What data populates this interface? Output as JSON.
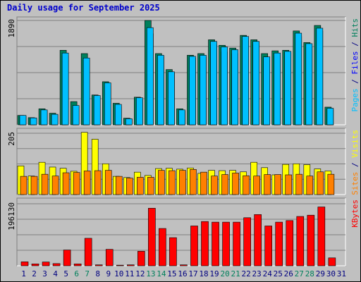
{
  "chart_data": {
    "type": "bar",
    "title": "Daily usage for September 2025",
    "days": [
      "1",
      "2",
      "3",
      "4",
      "5",
      "6",
      "7",
      "8",
      "9",
      "10",
      "11",
      "12",
      "13",
      "14",
      "15",
      "16",
      "17",
      "18",
      "19",
      "20",
      "21",
      "22",
      "23",
      "24",
      "25",
      "26",
      "27",
      "28",
      "29",
      "30",
      "31"
    ],
    "weekend_days": [
      "6",
      "7",
      "13",
      "14",
      "20",
      "21",
      "27",
      "28"
    ],
    "weekend_color": "#00805c",
    "weekday_color": "#000080",
    "panels": [
      {
        "name": "requests",
        "ymax": 1890,
        "ymax_label": "1890",
        "legend": [
          {
            "text": "Pages",
            "color": "#00c0ff"
          },
          {
            "text": " / ",
            "color": "#000080"
          },
          {
            "text": "Files",
            "color": "#0000ff"
          },
          {
            "text": " / ",
            "color": "#000080"
          },
          {
            "text": "Hits",
            "color": "#00805c"
          }
        ],
        "series": [
          {
            "key": "Hits",
            "color": "#00805c",
            "values": [
              170,
              130,
              290,
              210,
              1350,
              420,
              1290,
              540,
              780,
              390,
              120,
              500,
              1890,
              1290,
              1000,
              290,
              1260,
              1290,
              1540,
              1440,
              1390,
              1620,
              1540,
              1290,
              1340,
              1350,
              1700,
              1490,
              1800,
              320,
              0
            ]
          },
          {
            "key": "Files",
            "color": "#0000ff",
            "values": [
              150,
              110,
              260,
              180,
              1250,
              330,
              1190,
              470,
              700,
              330,
              100,
              460,
              1650,
              1240,
              940,
              250,
              1210,
              1230,
              1450,
              1320,
              1290,
              1530,
              1450,
              1200,
              1250,
              1300,
              1600,
              1410,
              1700,
              280,
              0
            ]
          },
          {
            "key": "Pages",
            "color": "#00c0ff",
            "values": [
              170,
              125,
              270,
              190,
              1300,
              350,
              1210,
              530,
              760,
              370,
              110,
              490,
              1760,
              1260,
              960,
              270,
              1240,
              1260,
              1510,
              1410,
              1360,
              1600,
              1510,
              1230,
              1300,
              1330,
              1660,
              1470,
              1750,
              300,
              0
            ]
          }
        ]
      },
      {
        "name": "visits",
        "ymax": 205,
        "ymax_label": "205",
        "legend": [
          {
            "text": "Sites",
            "color": "#ff8000"
          },
          {
            "text": " / ",
            "color": "#000080"
          },
          {
            "text": "Visits",
            "color": "#ffff00"
          }
        ],
        "series": [
          {
            "key": "Visits",
            "color": "#ffff00",
            "values": [
              96,
              62,
              108,
              92,
              88,
              78,
              208,
              185,
              103,
              61,
              57,
              75,
              64,
              87,
              88,
              85,
              89,
              71,
              81,
              80,
              81,
              76,
              108,
              90,
              66,
              101,
              103,
              100,
              86,
              79,
              0
            ]
          },
          {
            "key": "Sites",
            "color": "#ff8000",
            "values": [
              61,
              61,
              68,
              62,
              73,
              74,
              79,
              80,
              81,
              61,
              55,
              58,
              58,
              81,
              80,
              81,
              84,
              75,
              62,
              67,
              72,
              63,
              62,
              67,
              67,
              66,
              68,
              62,
              76,
              68,
              0
            ]
          }
        ]
      },
      {
        "name": "kbytes",
        "ymax": 196130,
        "ymax_label": "196130",
        "legend": [
          {
            "text": "KBytes",
            "color": "#ff0000"
          }
        ],
        "series": [
          {
            "key": "KBytes",
            "color": "#ff0000",
            "values": [
              12500,
              6000,
              12000,
              7000,
              50000,
              6000,
              87000,
              3000,
              52000,
              2000,
              3000,
              46000,
              182000,
              118000,
              89000,
              3000,
              126000,
              140000,
              138000,
              138000,
              138000,
              152000,
              162000,
              126000,
              138000,
              143000,
              156000,
              160000,
              186000,
              25000,
              0
            ]
          }
        ]
      }
    ]
  }
}
